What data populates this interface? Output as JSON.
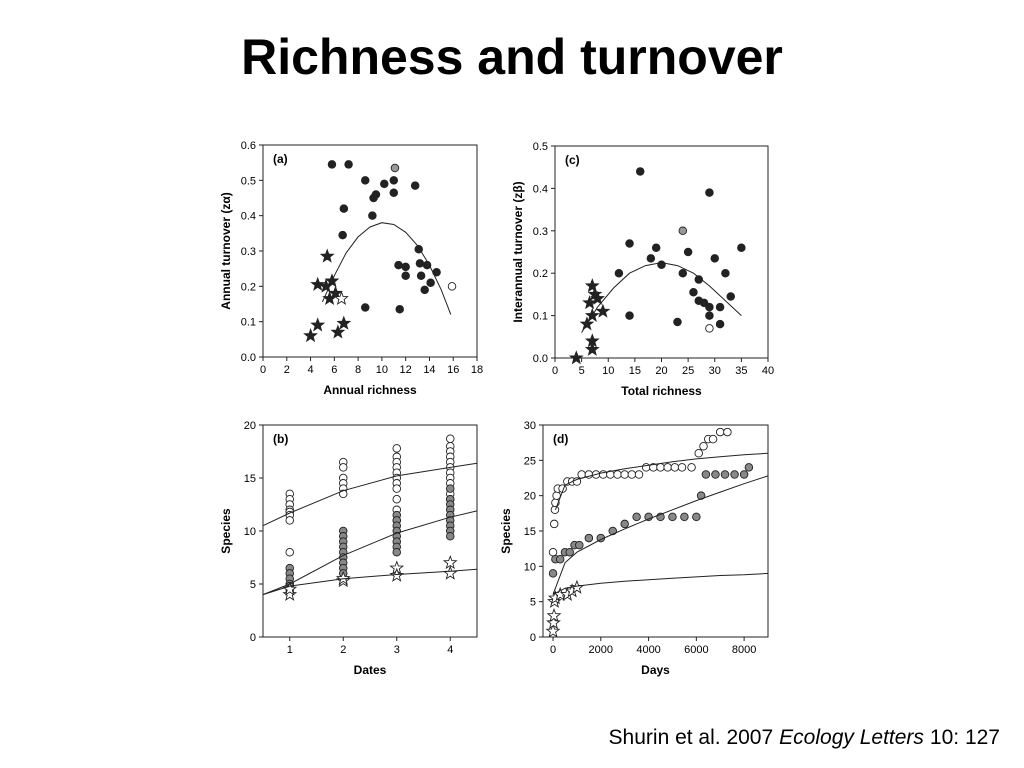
{
  "slide_title": "Richness and turnover",
  "citation": {
    "authors": "Shurin et al. 2007",
    "journal": "Ecology Letters",
    "volume": "10: 127"
  },
  "chart_data": [
    {
      "type": "scatter",
      "panel": "(a)",
      "xlabel": "Annual richness",
      "ylabel": "Annual turnover (zα)",
      "xlim": [
        0,
        18
      ],
      "ylim": [
        0,
        0.6
      ],
      "xticks": [
        0,
        2,
        4,
        6,
        8,
        10,
        12,
        14,
        16,
        18
      ],
      "yticks": [
        {
          "value": 0,
          "label": "0.0"
        },
        0.1,
        0.2,
        0.3,
        0.4,
        0.5,
        0.6
      ],
      "series": [
        {
          "marker": "circle",
          "color": "#222222",
          "x": [
            5.8,
            7.2,
            6.8,
            6.7,
            8.6,
            9.3,
            9.5,
            9.2,
            10.2,
            11,
            11,
            12.8,
            11.4,
            12,
            12,
            13.1,
            13.2,
            13.8,
            14.6,
            13.3,
            14.1,
            13.6,
            11.5,
            8.6
          ],
          "values": [
            0.545,
            0.545,
            0.42,
            0.345,
            0.5,
            0.45,
            0.46,
            0.4,
            0.49,
            0.5,
            0.465,
            0.485,
            0.26,
            0.255,
            0.23,
            0.305,
            0.265,
            0.26,
            0.24,
            0.23,
            0.21,
            0.19,
            0.135,
            0.14
          ]
        },
        {
          "marker": "circle",
          "color": "#999999",
          "x": [
            11.1
          ],
          "values": [
            0.535
          ]
        },
        {
          "marker": "circle",
          "color": "#ffffff",
          "x": [
            15.9
          ],
          "values": [
            0.2
          ]
        },
        {
          "marker": "star",
          "color": "#222222",
          "x": [
            4,
            4.6,
            5.4,
            4.6,
            5.3,
            5.8,
            5.6,
            6.1,
            6.3,
            6.8
          ],
          "values": [
            0.06,
            0.09,
            0.285,
            0.205,
            0.2,
            0.215,
            0.165,
            0.18,
            0.07,
            0.095
          ]
        },
        {
          "marker": "star",
          "color": "#ffffff",
          "x": [
            6.6
          ],
          "values": [
            0.165
          ]
        },
        {
          "marker": "line",
          "color": "#222222",
          "x": [
            5,
            6,
            7,
            8,
            9,
            10,
            11,
            12,
            13,
            14,
            15,
            15.8
          ],
          "values": [
            0.156,
            0.23,
            0.295,
            0.34,
            0.368,
            0.38,
            0.375,
            0.353,
            0.315,
            0.26,
            0.19,
            0.12
          ]
        }
      ]
    },
    {
      "type": "scatter",
      "panel": "(c)",
      "xlabel": "Total richness",
      "ylabel": "Interannual turnover (zβ)",
      "xlim": [
        0,
        40
      ],
      "ylim": [
        0,
        0.5
      ],
      "xticks": [
        0,
        5,
        10,
        15,
        20,
        25,
        30,
        35,
        40
      ],
      "yticks": [
        {
          "value": 0,
          "label": "0.0"
        },
        0.1,
        0.2,
        0.3,
        0.4,
        0.5
      ],
      "series": [
        {
          "marker": "circle",
          "color": "#222222",
          "x": [
            16,
            29,
            14,
            19,
            25,
            35,
            18,
            20,
            12,
            27,
            24,
            30,
            32,
            26,
            27,
            28,
            29,
            31,
            33,
            31,
            23,
            14,
            29
          ],
          "values": [
            0.44,
            0.39,
            0.27,
            0.26,
            0.25,
            0.26,
            0.235,
            0.22,
            0.2,
            0.185,
            0.2,
            0.235,
            0.2,
            0.155,
            0.135,
            0.13,
            0.12,
            0.12,
            0.145,
            0.08,
            0.085,
            0.1,
            0.1
          ]
        },
        {
          "marker": "circle",
          "color": "#999999",
          "x": [
            24
          ],
          "values": [
            0.3
          ]
        },
        {
          "marker": "circle",
          "color": "#ffffff",
          "x": [
            29
          ],
          "values": [
            0.07
          ]
        },
        {
          "marker": "star",
          "color": "#222222",
          "x": [
            7,
            6.5,
            8,
            7.5,
            7,
            9,
            6,
            7,
            7,
            4
          ],
          "values": [
            0.17,
            0.13,
            0.14,
            0.15,
            0.1,
            0.11,
            0.08,
            0.04,
            0.02,
            0
          ]
        },
        {
          "marker": "line",
          "color": "#222222",
          "x": [
            5,
            8,
            11,
            14,
            17,
            20,
            23,
            26,
            29,
            32,
            35
          ],
          "values": [
            0.06,
            0.12,
            0.165,
            0.2,
            0.218,
            0.225,
            0.218,
            0.2,
            0.17,
            0.135,
            0.1
          ]
        }
      ]
    },
    {
      "type": "scatter",
      "panel": "(b)",
      "xlabel": "Dates",
      "ylabel": "Species",
      "xlim": [
        0.5,
        4.5
      ],
      "ylim": [
        0,
        20
      ],
      "xticks": [
        1,
        2,
        3,
        4
      ],
      "yticks": [
        0,
        5,
        10,
        15,
        20
      ],
      "series": [
        {
          "marker": "circle",
          "color": "#ffffff",
          "x": [
            1,
            1,
            1,
            1,
            1,
            1,
            1,
            1,
            2,
            2,
            2,
            2,
            2,
            2,
            3,
            3,
            3,
            3,
            3,
            3,
            3,
            3,
            3,
            3,
            3,
            4,
            4,
            4,
            4,
            4,
            4,
            4,
            4,
            4,
            4,
            4
          ],
          "values": [
            13.5,
            13,
            12.5,
            12,
            11.8,
            11.5,
            11,
            8,
            16.5,
            16,
            15,
            14.5,
            14,
            13.5,
            17.8,
            17,
            16.5,
            16,
            15.5,
            15,
            14.5,
            14,
            13,
            12,
            11,
            18.7,
            18,
            17.5,
            17,
            16.5,
            16,
            15.5,
            15,
            14.5,
            13.5,
            13
          ]
        },
        {
          "marker": "circle",
          "color": "#888888",
          "x": [
            1,
            1,
            1,
            1,
            1,
            1,
            1,
            2,
            2,
            2,
            2,
            2,
            2,
            2,
            2,
            2,
            3,
            3,
            3,
            3,
            3,
            3,
            3,
            3,
            4,
            4,
            4,
            4,
            4,
            4,
            4,
            4,
            4
          ],
          "values": [
            6.5,
            6,
            5.5,
            5,
            4.8,
            4.5,
            4.2,
            10,
            9.5,
            9,
            8.5,
            8,
            7.5,
            7,
            6.5,
            6,
            11.5,
            11,
            10.5,
            10,
            9.5,
            9,
            8.5,
            8,
            14,
            13,
            12.5,
            12,
            11.5,
            11,
            10.5,
            10,
            9.5
          ]
        },
        {
          "marker": "star",
          "color": "#ffffff",
          "x": [
            1,
            1,
            2,
            2,
            3,
            3,
            4,
            4
          ],
          "values": [
            4,
            4.5,
            5.3,
            5.5,
            6.5,
            5.8,
            7,
            6
          ]
        },
        {
          "marker": "line",
          "color": "#222222",
          "x": [
            0.5,
            1,
            2,
            3,
            4,
            4.5
          ],
          "values": [
            10.5,
            11.7,
            13.8,
            15.2,
            16,
            16.4
          ]
        },
        {
          "marker": "line",
          "color": "#222222",
          "x": [
            0.5,
            1,
            2,
            3,
            4,
            4.5
          ],
          "values": [
            4,
            5,
            7.7,
            9.8,
            11.3,
            11.9
          ]
        },
        {
          "marker": "line",
          "color": "#222222",
          "x": [
            0.5,
            1,
            2,
            3,
            4,
            4.5
          ],
          "values": [
            4,
            4.8,
            5.5,
            5.9,
            6.2,
            6.4
          ]
        }
      ]
    },
    {
      "type": "scatter",
      "panel": "(d)",
      "xlabel": "Days",
      "ylabel": "Species",
      "xlim": [
        -420,
        9000
      ],
      "ylim": [
        0,
        30
      ],
      "xticks": [
        0,
        2000,
        4000,
        6000,
        8000
      ],
      "yticks": [
        0,
        5,
        10,
        15,
        20,
        25,
        30
      ],
      "series": [
        {
          "marker": "circle",
          "color": "#ffffff",
          "x": [
            0,
            50,
            80,
            100,
            150,
            200,
            400,
            600,
            800,
            1000,
            1200,
            1500,
            1800,
            2100,
            2400,
            2700,
            3000,
            3300,
            3600,
            3900,
            4200,
            4500,
            4800,
            5100,
            5400,
            5800,
            6100,
            6300,
            6500,
            6700,
            7000,
            7300
          ],
          "values": [
            12,
            16,
            18,
            19,
            20,
            21,
            21,
            22,
            22,
            22,
            23,
            23,
            23,
            23,
            23,
            23,
            23,
            23,
            23,
            24,
            24,
            24,
            24,
            24,
            24,
            24,
            26,
            27,
            28,
            28,
            29,
            29
          ]
        },
        {
          "marker": "circle",
          "color": "#888888",
          "x": [
            0,
            100,
            300,
            500,
            700,
            900,
            1100,
            1500,
            2000,
            2500,
            3000,
            3500,
            4000,
            4500,
            5000,
            5500,
            6000,
            6200,
            6400,
            6800,
            7200,
            7600,
            8000,
            8200
          ],
          "values": [
            9,
            11,
            11,
            12,
            12,
            13,
            13,
            14,
            14,
            15,
            16,
            17,
            17,
            17,
            17,
            17,
            17,
            20,
            23,
            23,
            23,
            23,
            23,
            24
          ]
        },
        {
          "marker": "star",
          "color": "#ffffff",
          "x": [
            0,
            20,
            40,
            60,
            100,
            300,
            600,
            800,
            1000
          ],
          "values": [
            0.8,
            2,
            3,
            5,
            5.5,
            6,
            6,
            6.5,
            7
          ]
        },
        {
          "marker": "line",
          "color": "#222222",
          "x": [
            100,
            500,
            1000,
            2000,
            3000,
            4000,
            5000,
            6000,
            7000,
            8000,
            9000
          ],
          "values": [
            18,
            21.5,
            22.3,
            23.2,
            23.8,
            24.3,
            24.8,
            25.2,
            25.5,
            25.8,
            26
          ]
        },
        {
          "marker": "line",
          "color": "#222222",
          "x": [
            0,
            500,
            1000,
            2000,
            3000,
            4000,
            5000,
            6000,
            7000,
            8000,
            9000
          ],
          "values": [
            6,
            10.5,
            12,
            13.8,
            15.3,
            16.7,
            18,
            19.3,
            20.5,
            21.7,
            22.8
          ]
        },
        {
          "marker": "line",
          "color": "#222222",
          "x": [
            0,
            500,
            1000,
            2000,
            3000,
            4000,
            5000,
            6000,
            7000,
            8000,
            9000
          ],
          "values": [
            6,
            6.9,
            7.2,
            7.6,
            7.9,
            8.1,
            8.3,
            8.5,
            8.7,
            8.8,
            9
          ]
        }
      ]
    }
  ]
}
